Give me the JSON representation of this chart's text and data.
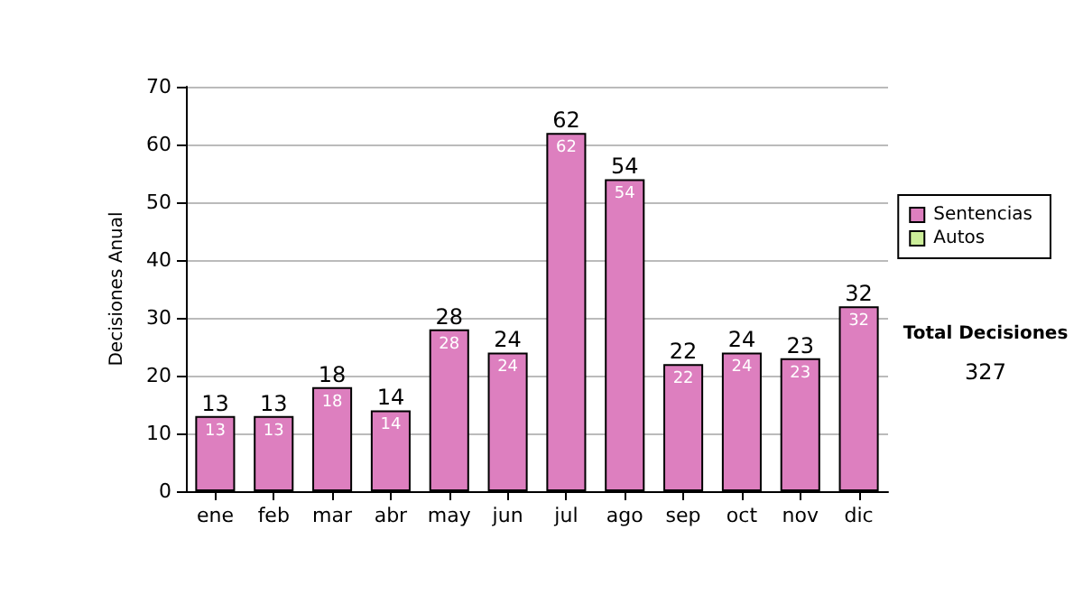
{
  "chart_data": {
    "type": "bar",
    "ylabel": "Decisiones Anual",
    "categories": [
      "ene",
      "feb",
      "mar",
      "abr",
      "may",
      "jun",
      "jul",
      "ago",
      "sep",
      "oct",
      "nov",
      "dic"
    ],
    "stacked": true,
    "series": [
      {
        "name": "Sentencias",
        "color": "#dd7fbf",
        "values": [
          13,
          13,
          18,
          14,
          28,
          24,
          62,
          54,
          22,
          24,
          23,
          32
        ],
        "value_labels": [
          "13",
          "13",
          "18",
          "14",
          "28",
          "24",
          "62",
          "54",
          "22",
          "24",
          "23",
          "32"
        ]
      },
      {
        "name": "Autos",
        "color": "#ccee99",
        "values": [
          null,
          null,
          null,
          null,
          null,
          null,
          null,
          null,
          null,
          null,
          null,
          null
        ]
      }
    ],
    "totals": [
      "13",
      "13",
      "18",
      "14",
      "28",
      "24",
      "62",
      "54",
      "22",
      "24",
      "23",
      "32"
    ],
    "ylim": [
      0,
      70
    ],
    "yticks": [
      0,
      10,
      20,
      30,
      40,
      50,
      60,
      70
    ],
    "grid": "y",
    "legend": "right",
    "annotations": [
      "Total Decisiones",
      "327"
    ]
  }
}
